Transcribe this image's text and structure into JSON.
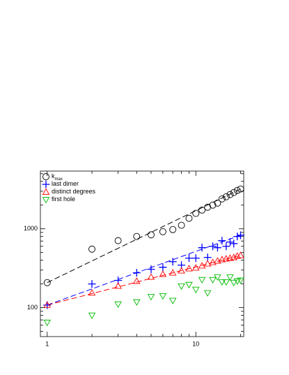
{
  "chart_data": {
    "type": "scatter",
    "x": [
      1,
      2,
      3,
      4,
      5,
      6,
      7,
      8,
      9,
      10,
      11,
      12,
      13,
      14,
      15,
      16,
      17,
      18,
      19,
      20
    ],
    "series": [
      {
        "name": "k",
        "subscript": "max",
        "color": "#000000",
        "marker": "circle",
        "values": [
          208,
          553,
          708,
          800,
          840,
          920,
          980,
          1110,
          1360,
          1570,
          1730,
          1880,
          2000,
          2120,
          2400,
          2550,
          2720,
          2890,
          3070,
          3200
        ]
      },
      {
        "name": "last dimer",
        "color": "#0000ff",
        "marker": "plus",
        "values": [
          108,
          200,
          222,
          277,
          307,
          326,
          383,
          347,
          425,
          425,
          577,
          434,
          600,
          577,
          707,
          600,
          680,
          650,
          800,
          830
        ]
      },
      {
        "name": "distinct degrees",
        "color": "#ff0000",
        "marker": "triangle-up",
        "values": [
          108,
          154,
          188,
          217,
          245,
          266,
          277,
          294,
          313,
          320,
          340,
          361,
          376,
          392,
          408,
          417,
          425,
          434,
          452,
          461
        ]
      },
      {
        "name": "first hole",
        "color": "#00bb00",
        "marker": "triangle-down",
        "values": [
          65,
          80,
          111,
          118,
          138,
          141,
          123,
          188,
          196,
          170,
          226,
          154,
          226,
          245,
          212,
          212,
          245,
          208,
          217,
          222
        ]
      }
    ],
    "fit_lines": [
      {
        "color": "#000000",
        "x": [
          1,
          20
        ],
        "values": [
          208,
          3200
        ]
      },
      {
        "color": "#0000ff",
        "x": [
          1,
          20
        ],
        "values": [
          108,
          830
        ]
      },
      {
        "color": "#ff0000",
        "x": [
          1,
          20
        ],
        "values": [
          108,
          460
        ]
      }
    ],
    "xlog": true,
    "ylog": true,
    "xlim": [
      0.9,
      21
    ],
    "ylim": [
      43,
      5400
    ],
    "xticks": [
      1,
      10
    ],
    "xminorticks": [
      2,
      3,
      4,
      5,
      6,
      7,
      8,
      9,
      20
    ],
    "yticks": [
      100,
      1000
    ],
    "yminorticks": [
      50,
      60,
      70,
      80,
      90,
      200,
      300,
      400,
      500,
      600,
      700,
      800,
      900,
      2000,
      3000,
      4000,
      5000
    ],
    "legend": "upper-left"
  }
}
